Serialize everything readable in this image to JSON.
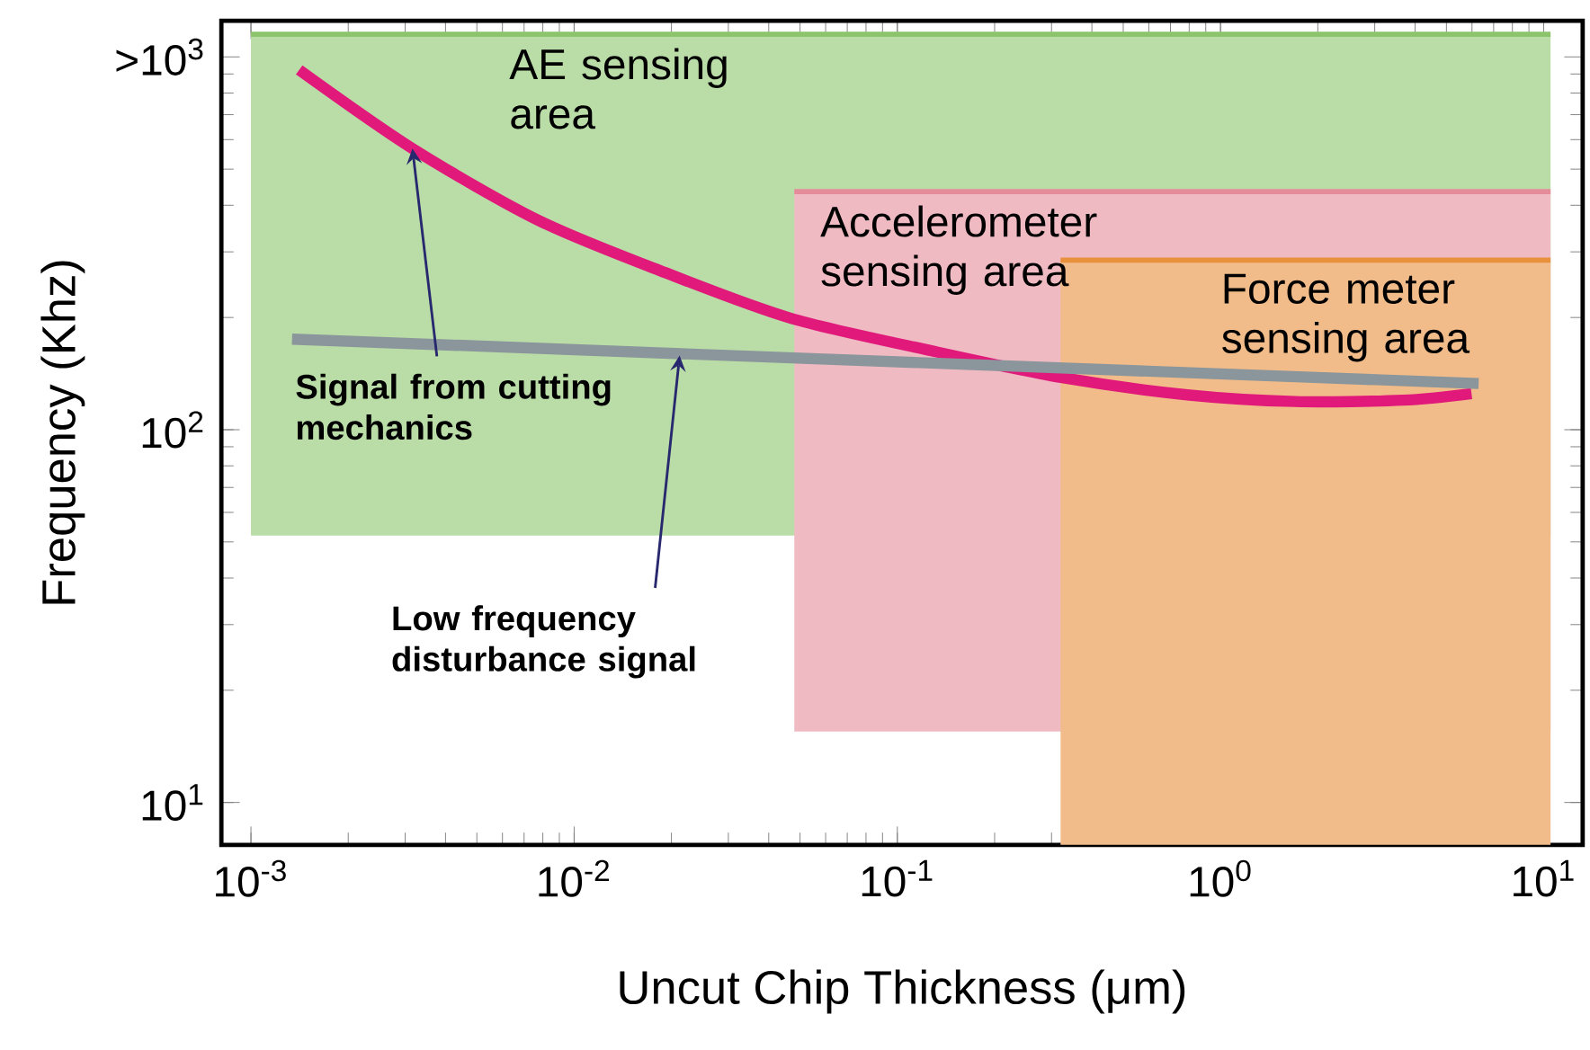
{
  "chart_data": {
    "type": "line",
    "xlabel": "Uncut Chip Thickness (μm)",
    "ylabel": "Frequency (Khz)",
    "log": "xy",
    "xlim": [
      0.00081,
      13.2
    ],
    "ylim": [
      7.7,
      1250
    ],
    "xticks": [
      {
        "value": 0.001,
        "label": "10$^{-3}$"
      },
      {
        "value": 0.01,
        "label": "10$^{-2}$"
      },
      {
        "value": 0.1,
        "label": "10$^{-1}$"
      },
      {
        "value": 1,
        "label": "10$^{0}$"
      },
      {
        "value": 10,
        "label": "10$^{1}$"
      }
    ],
    "yticks": [
      {
        "value": 10,
        "label": "10$^{1}$"
      },
      {
        "value": 100,
        "label": "10$^{2}$"
      },
      {
        "value": 1000,
        "label": ">10$^{3}$"
      }
    ],
    "series": [
      {
        "type": "line",
        "name": "AE sensing area",
        "color": "#8cc46c",
        "x": [
          0.001,
          10.5
        ],
        "values": [
          1150,
          1150
        ],
        "lower": [
          52,
          52
        ],
        "upper": [
          1150,
          1150
        ]
      },
      {
        "type": "line",
        "name": "Accelerometer sensing area",
        "color": "#e48c9a",
        "x": [
          0.048,
          10.5
        ],
        "values": [
          435,
          435
        ],
        "lower": [
          15.5,
          15.5
        ],
        "upper": [
          435,
          435
        ]
      },
      {
        "type": "line",
        "name": "Force meter sensing area",
        "color": "#e8903c",
        "x": [
          0.32,
          10.5
        ],
        "values": [
          285,
          285
        ],
        "lower": [
          7.7,
          7.7
        ],
        "upper": [
          285,
          285
        ]
      },
      {
        "type": "line",
        "color": "#e0197a",
        "x": [
          0.00141,
          0.00316,
          0.00778,
          0.0191,
          0.0469,
          0.131,
          0.321,
          0.789,
          1.7,
          3.67,
          5.98
        ],
        "values": [
          923,
          568,
          364,
          264,
          199,
          162,
          138,
          124,
          119,
          120,
          125
        ]
      },
      {
        "type": "line",
        "color": "#8a969b",
        "x": [
          0.00134,
          6.29
        ],
        "values": [
          175,
          133
        ]
      }
    ],
    "annotations": [
      {
        "text": "Signal from cutting mechanics",
        "x": 0.00316,
        "y": 568
      },
      {
        "text": "Low frequency disturbance signal",
        "x": 0.0212,
        "y": 158
      }
    ]
  }
}
